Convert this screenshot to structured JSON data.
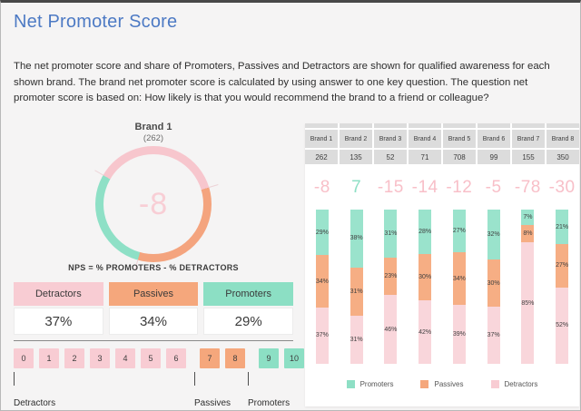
{
  "header": {
    "title": "Net Promoter Score"
  },
  "intro": {
    "text": "The net promoter score and share of Promoters, Passives and Detractors are shown for qualified awareness for each shown brand. The brand net promoter score is calculated by using answer to one key question. The question net promoter score is based on: How likely is that you would recommend the brand to a friend or colleague?"
  },
  "colors": {
    "title_blue": "#4d7ac4",
    "detractors": "#f8ccd3",
    "passives": "#f5a77c",
    "promoters": "#8cdfc4",
    "donut_detractors": "#f7c6cd",
    "donut_passives": "#f4a47e",
    "donut_promoters": "#8ee0c6",
    "bar_detractors": "#f9d6db",
    "bar_passives": "#f6ae84",
    "bar_promoters": "#9ae3cc",
    "nps_negative_text": "#f8bfc8",
    "nps_positive_text": "#8edfc5",
    "header_cell_gray": "#dcdcdc"
  },
  "donut": {
    "brand": "Brand 1",
    "count": "(262)",
    "nps_display": "-8",
    "formula": "NPS = % PROMOTERS - % DETRACTORS",
    "detractors_pct": 37,
    "passives_pct": 34,
    "promoters_pct": 29,
    "start_angle_deg": -60
  },
  "summary": {
    "columns": [
      {
        "label": "Detractors",
        "value": "37%",
        "color": "#f8ccd3"
      },
      {
        "label": "Passives",
        "value": "34%",
        "color": "#f5a77c"
      },
      {
        "label": "Promoters",
        "value": "29%",
        "color": "#8cdfc4"
      }
    ]
  },
  "scale": {
    "boxes": [
      {
        "label": "0",
        "group": "det"
      },
      {
        "label": "1",
        "group": "det"
      },
      {
        "label": "2",
        "group": "det"
      },
      {
        "label": "3",
        "group": "det"
      },
      {
        "label": "4",
        "group": "det"
      },
      {
        "label": "5",
        "group": "det"
      },
      {
        "label": "6",
        "group": "det"
      },
      {
        "label": "7",
        "group": "pas"
      },
      {
        "label": "8",
        "group": "pas"
      },
      {
        "label": "9",
        "group": "pro"
      },
      {
        "label": "10",
        "group": "pro"
      }
    ],
    "group_labels": [
      {
        "label": "Detractors",
        "x": 0
      },
      {
        "label": "Passives",
        "x": 199
      },
      {
        "label": "Promoters",
        "x": 258
      }
    ]
  },
  "brands": [
    {
      "name": "Brand 1",
      "count": "262",
      "nps": -8,
      "nps_display": "-8",
      "promoters": 29,
      "passives": 34,
      "detractors": 37
    },
    {
      "name": "Brand 2",
      "count": "135",
      "nps": 7,
      "nps_display": "7",
      "promoters": 38,
      "passives": 31,
      "detractors": 31
    },
    {
      "name": "Brand 3",
      "count": "52",
      "nps": -15,
      "nps_display": "-15",
      "promoters": 31,
      "passives": 23,
      "detractors": 46
    },
    {
      "name": "Brand 4",
      "count": "71",
      "nps": -14,
      "nps_display": "-14",
      "promoters": 28,
      "passives": 30,
      "detractors": 42
    },
    {
      "name": "Brand 5",
      "count": "708",
      "nps": -12,
      "nps_display": "-12",
      "promoters": 27,
      "passives": 34,
      "detractors": 39
    },
    {
      "name": "Brand 6",
      "count": "99",
      "nps": -5,
      "nps_display": "-5",
      "promoters": 32,
      "passives": 30,
      "detractors": 37
    },
    {
      "name": "Brand 7",
      "count": "155",
      "nps": -78,
      "nps_display": "-78",
      "promoters": 7,
      "passives": 8,
      "detractors": 85
    },
    {
      "name": "Brand 8",
      "count": "350",
      "nps": -30,
      "nps_display": "-30",
      "promoters": 21,
      "passives": 27,
      "detractors": 52
    }
  ],
  "legend": {
    "items": [
      {
        "label": "Promoters",
        "color": "#8edfc5"
      },
      {
        "label": "Passives",
        "color": "#f5a77c"
      },
      {
        "label": "Detractors",
        "color": "#f8ccd3"
      }
    ]
  },
  "chart_data": [
    {
      "type": "pie",
      "title": "Brand 1 (262) NPS donut",
      "categories": [
        "Detractors",
        "Passives",
        "Promoters"
      ],
      "values": [
        37,
        34,
        29
      ],
      "center_label": "-8",
      "annotation": "NPS = % PROMOTERS - % DETRACTORS"
    },
    {
      "type": "bar",
      "subtype": "stacked-100",
      "categories": [
        "Brand 1",
        "Brand 2",
        "Brand 3",
        "Brand 4",
        "Brand 5",
        "Brand 6",
        "Brand 7",
        "Brand 8"
      ],
      "counts": [
        262,
        135,
        52,
        71,
        708,
        99,
        155,
        350
      ],
      "nps": [
        -8,
        7,
        -15,
        -14,
        -12,
        -5,
        -78,
        -30
      ],
      "series": [
        {
          "name": "Promoters",
          "values": [
            29,
            38,
            31,
            28,
            27,
            32,
            7,
            21
          ]
        },
        {
          "name": "Passives",
          "values": [
            34,
            31,
            23,
            30,
            34,
            30,
            8,
            27
          ]
        },
        {
          "name": "Detractors",
          "values": [
            37,
            31,
            46,
            42,
            39,
            37,
            85,
            52
          ]
        }
      ],
      "ylim": [
        0,
        100
      ],
      "legend_position": "bottom"
    }
  ]
}
